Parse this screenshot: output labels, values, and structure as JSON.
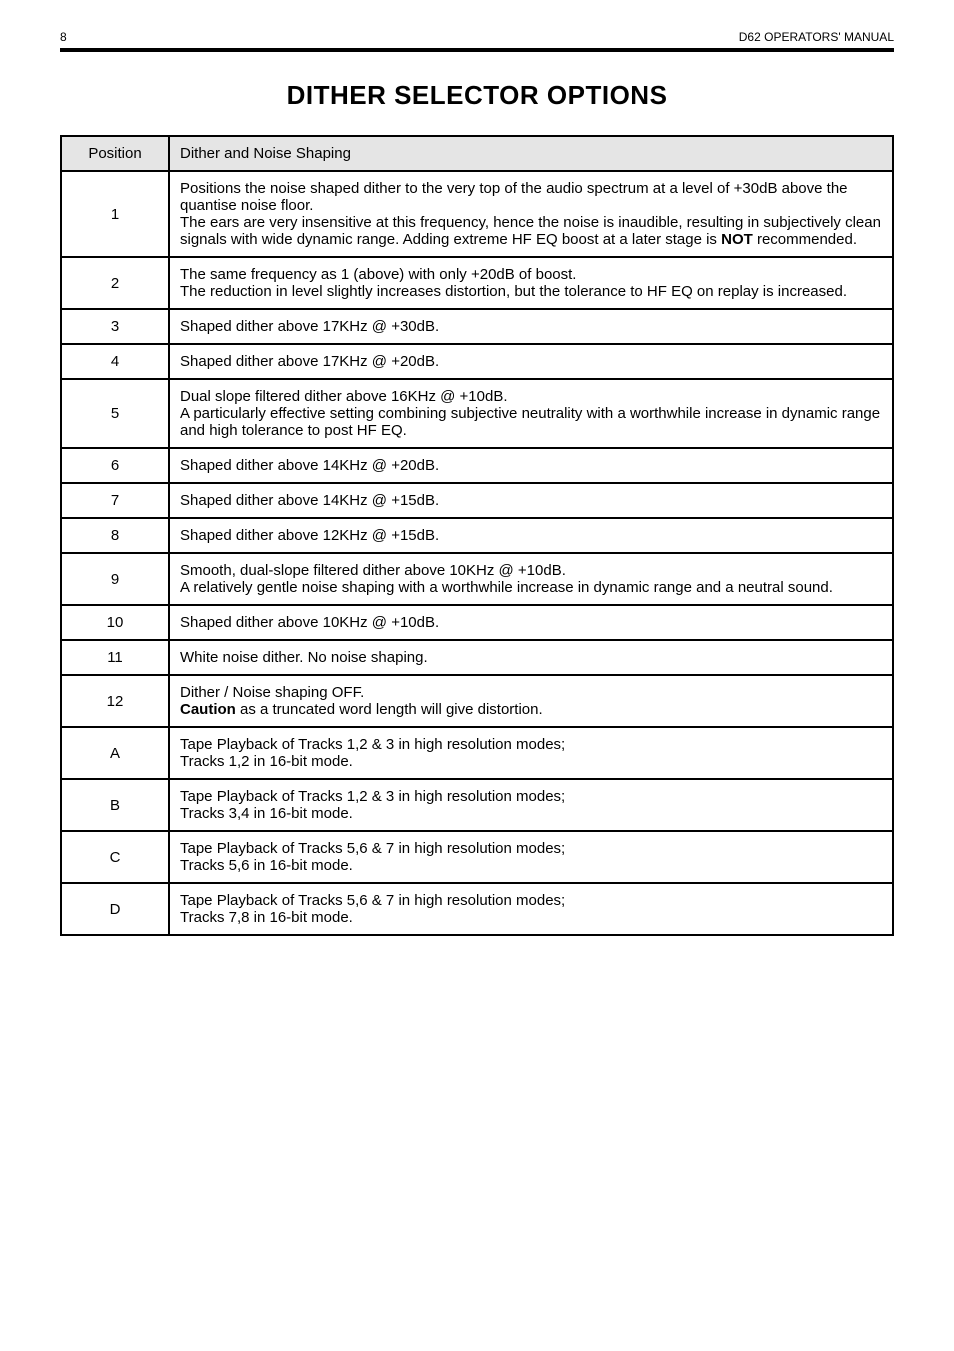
{
  "page_header": {
    "page_number": "8",
    "doc_title": "D62 OPERATORS' MANUAL"
  },
  "title": "DITHER SELECTOR OPTIONS",
  "table": {
    "columns": [
      "Position",
      "Dither and Noise Shaping"
    ],
    "rows": [
      {
        "pos": "1",
        "desc_parts": [
          {
            "t": "Positions the noise shaped dither to the very top of the audio spectrum at a level of +30dB above the quantise noise floor."
          },
          {
            "br": true
          },
          {
            "t": "The ears are very insensitive at this frequency, hence the noise is inaudible, resulting in subjectively clean signals with wide dynamic range. Adding extreme HF EQ boost at a later stage is "
          },
          {
            "t": "NOT",
            "bold": true
          },
          {
            "t": " recommended."
          }
        ]
      },
      {
        "pos": "2",
        "desc_parts": [
          {
            "t": "The same frequency as 1 (above) with only +20dB of boost."
          },
          {
            "br": true
          },
          {
            "t": "The reduction in level slightly increases distortion, but the tolerance to HF EQ on replay is increased."
          }
        ]
      },
      {
        "pos": "3",
        "desc_parts": [
          {
            "t": "Shaped dither above 17KHz @ +30dB."
          }
        ]
      },
      {
        "pos": "4",
        "desc_parts": [
          {
            "t": "Shaped dither above 17KHz @ +20dB."
          }
        ]
      },
      {
        "pos": "5",
        "desc_parts": [
          {
            "t": "Dual slope filtered dither above 16KHz @ +10dB."
          },
          {
            "br": true
          },
          {
            "t": "A particularly effective setting combining subjective neutrality with a worthwhile increase in dynamic range and high tolerance to post HF EQ."
          }
        ]
      },
      {
        "pos": "6",
        "desc_parts": [
          {
            "t": "Shaped dither above 14KHz @ +20dB."
          }
        ]
      },
      {
        "pos": "7",
        "desc_parts": [
          {
            "t": "Shaped dither above 14KHz @ +15dB."
          }
        ]
      },
      {
        "pos": "8",
        "desc_parts": [
          {
            "t": "Shaped dither above 12KHz @ +15dB."
          }
        ]
      },
      {
        "pos": "9",
        "desc_parts": [
          {
            "t": "Smooth, dual-slope filtered dither above 10KHz @ +10dB."
          },
          {
            "br": true
          },
          {
            "t": "A relatively gentle noise shaping with a worthwhile increase in dynamic range and a neutral sound."
          }
        ]
      },
      {
        "pos": "10",
        "desc_parts": [
          {
            "t": "Shaped dither above 10KHz @ +10dB."
          }
        ]
      },
      {
        "pos": "11",
        "desc_parts": [
          {
            "t": "White noise dither. No noise shaping."
          }
        ]
      },
      {
        "pos": "12",
        "desc_parts": [
          {
            "t": "Dither / Noise shaping OFF."
          },
          {
            "br": true
          },
          {
            "t": "Caution",
            "bold": true
          },
          {
            "t": " as a truncated word length will give distortion."
          }
        ]
      },
      {
        "pos": "A",
        "desc_parts": [
          {
            "t": "Tape Playback of Tracks 1,2 & 3 in high resolution modes;"
          },
          {
            "br": true
          },
          {
            "t": "Tracks 1,2 in 16-bit mode."
          }
        ]
      },
      {
        "pos": "B",
        "desc_parts": [
          {
            "t": "Tape Playback of Tracks 1,2 & 3 in high resolution modes;"
          },
          {
            "br": true
          },
          {
            "t": "Tracks 3,4 in 16-bit mode."
          }
        ]
      },
      {
        "pos": "C",
        "desc_parts": [
          {
            "t": "Tape Playback of Tracks 5,6 & 7 in high resolution modes;"
          },
          {
            "br": true
          },
          {
            "t": "Tracks 5,6 in 16-bit mode."
          }
        ]
      },
      {
        "pos": "D",
        "desc_parts": [
          {
            "t": "Tape Playback of Tracks 5,6 & 7 in high resolution modes;"
          },
          {
            "br": true
          },
          {
            "t": "Tracks 7,8 in 16-bit mode."
          }
        ]
      }
    ]
  }
}
